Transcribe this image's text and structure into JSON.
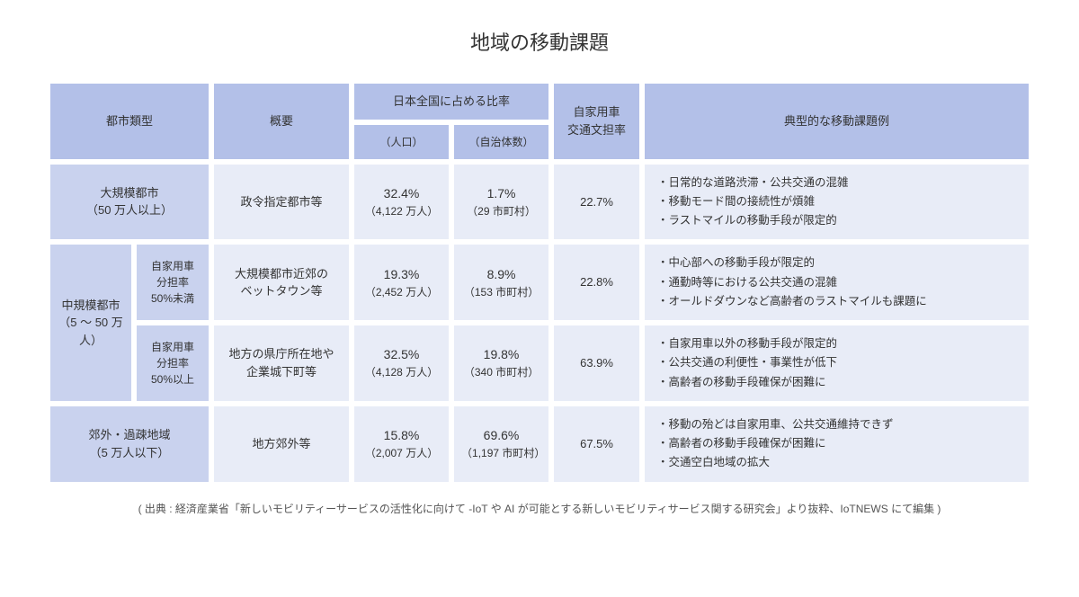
{
  "title": "地域の移動課題",
  "headers": {
    "city_type": "都市類型",
    "overview": "概要",
    "ratio_group": "日本全国に占める比率",
    "ratio_pop": "（人口）",
    "ratio_muni": "（自治体数）",
    "car_share": "自家用車\n交通文担率",
    "issues": "典型的な移動課題例"
  },
  "rows": [
    {
      "type_main": "大規模都市\n（50 万人以上）",
      "type_sub": null,
      "overview": "政令指定都市等",
      "pop_pct": "32.4%",
      "pop_sub": "（4,122 万人）",
      "muni_pct": "1.7%",
      "muni_sub": "（29 市町村）",
      "car": "22.7%",
      "issues": "・日常的な道路渋滞・公共交通の混雑\n・移動モード間の接続性が煩雑\n・ラストマイルの移動手段が限定的"
    },
    {
      "type_main": "中規模都市\n（5 〜 50 万人）",
      "type_sub": "自家用車\n分担率\n50%未満",
      "overview": "大規模都市近郊の\nベットタウン等",
      "pop_pct": "19.3%",
      "pop_sub": "（2,452 万人）",
      "muni_pct": "8.9%",
      "muni_sub": "（153 市町村）",
      "car": "22.8%",
      "issues": "・中心部への移動手段が限定的\n・通勤時等における公共交通の混雑\n・オールドダウンなど高齢者のラストマイルも課題に"
    },
    {
      "type_main": null,
      "type_sub": "自家用車\n分担率\n50%以上",
      "overview": "地方の県庁所在地や\n企業城下町等",
      "pop_pct": "32.5%",
      "pop_sub": "（4,128 万人）",
      "muni_pct": "19.8%",
      "muni_sub": "（340 市町村）",
      "car": "63.9%",
      "issues": "・自家用車以外の移動手段が限定的\n・公共交通の利便性・事業性が低下\n・高齢者の移動手段確保が困難に"
    },
    {
      "type_main": "郊外・過疎地域\n（5 万人以下）",
      "type_sub": null,
      "overview": "地方郊外等",
      "pop_pct": "15.8%",
      "pop_sub": "（2,007 万人）",
      "muni_pct": "69.6%",
      "muni_sub": "（1,197 市町村）",
      "car": "67.5%",
      "issues": "・移動の殆どは自家用車、公共交通維持できず\n・高齢者の移動手段確保が困難に\n・交通空白地域の拡大"
    }
  ],
  "source": "( 出典 : 経済産業省「新しいモビリティーサービスの活性化に向けて -IoT や AI が可能とする新しいモビリティサービス関する研究会」より抜粋、IoTNEWS にて編集 )",
  "colors": {
    "header_bg": "#b3c0e8",
    "rowlabel_bg": "#c9d2ee",
    "data_bg": "#e8ecf7",
    "text": "#333333",
    "page_bg": "#ffffff"
  },
  "type": "table"
}
